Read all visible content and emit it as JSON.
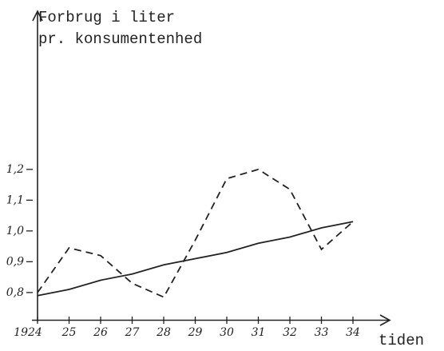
{
  "chart_data": {
    "type": "line",
    "ylabel": [
      "Forbrug i liter",
      "pr. konsumentenhed"
    ],
    "xlabel": "tiden",
    "categories": [
      "1924",
      "25",
      "26",
      "27",
      "28",
      "29",
      "30",
      "31",
      "32",
      "33",
      "34"
    ],
    "series": [
      {
        "color": "#222222",
        "style": "dashed",
        "values": [
          0.8,
          0.945,
          0.92,
          0.83,
          0.785,
          0.97,
          1.17,
          1.2,
          1.135,
          0.94,
          1.03
        ]
      },
      {
        "color": "#222222",
        "style": "solid",
        "values": [
          0.79,
          0.81,
          0.84,
          0.86,
          0.89,
          0.91,
          0.93,
          0.96,
          0.98,
          1.01,
          1.03
        ]
      }
    ],
    "ylim": [
      0.71,
      1.71
    ],
    "yticks": [
      {
        "value": 0.8,
        "label": "0,8"
      },
      {
        "value": 0.9,
        "label": "0,9"
      },
      {
        "value": 1.0,
        "label": "1,0"
      },
      {
        "value": 1.1,
        "label": "1,1"
      },
      {
        "value": 1.2,
        "label": "1,2"
      }
    ],
    "grid": false
  }
}
